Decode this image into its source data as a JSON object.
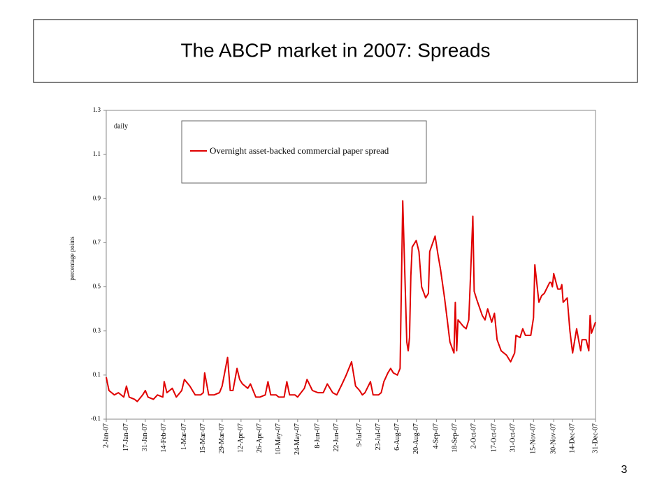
{
  "chart_data": {
    "type": "line",
    "title": "The ABCP market in 2007: Spreads",
    "y_label": "percentage points",
    "annotation": "daily",
    "page_number": "3",
    "x": [
      "2-Jan-07",
      "4-Jan-07",
      "8-Jan-07",
      "11-Jan-07",
      "15-Jan-07",
      "17-Jan-07",
      "19-Jan-07",
      "23-Jan-07",
      "25-Jan-07",
      "29-Jan-07",
      "31-Jan-07",
      "2-Feb-07",
      "6-Feb-07",
      "9-Feb-07",
      "13-Feb-07",
      "14-Feb-07",
      "16-Feb-07",
      "20-Feb-07",
      "23-Feb-07",
      "27-Feb-07",
      "1-Mar-07",
      "5-Mar-07",
      "7-Mar-07",
      "9-Mar-07",
      "13-Mar-07",
      "15-Mar-07",
      "16-Mar-07",
      "19-Mar-07",
      "23-Mar-07",
      "27-Mar-07",
      "29-Mar-07",
      "2-Apr-07",
      "4-Apr-07",
      "6-Apr-07",
      "9-Apr-07",
      "11-Apr-07",
      "13-Apr-07",
      "17-Apr-07",
      "19-Apr-07",
      "23-Apr-07",
      "26-Apr-07",
      "30-Apr-07",
      "2-May-07",
      "4-May-07",
      "8-May-07",
      "10-May-07",
      "14-May-07",
      "16-May-07",
      "18-May-07",
      "22-May-07",
      "24-May-07",
      "29-May-07",
      "31-May-07",
      "4-Jun-07",
      "8-Jun-07",
      "12-Jun-07",
      "15-Jun-07",
      "19-Jun-07",
      "22-Jun-07",
      "26-Jun-07",
      "29-Jun-07",
      "3-Jul-07",
      "6-Jul-07",
      "9-Jul-07",
      "11-Jul-07",
      "13-Jul-07",
      "17-Jul-07",
      "19-Jul-07",
      "23-Jul-07",
      "25-Jul-07",
      "27-Jul-07",
      "30-Jul-07",
      "1-Aug-07",
      "3-Aug-07",
      "6-Aug-07",
      "8-Aug-07",
      "10-Aug-07",
      "13-Aug-07",
      "14-Aug-07",
      "15-Aug-07",
      "16-Aug-07",
      "17-Aug-07",
      "20-Aug-07",
      "22-Aug-07",
      "24-Aug-07",
      "27-Aug-07",
      "29-Aug-07",
      "30-Aug-07",
      "3-Sep-07",
      "5-Sep-07",
      "7-Sep-07",
      "10-Sep-07",
      "12-Sep-07",
      "14-Sep-07",
      "17-Sep-07",
      "18-Sep-07",
      "19-Sep-07",
      "20-Sep-07",
      "24-Sep-07",
      "26-Sep-07",
      "28-Sep-07",
      "1-Oct-07",
      "2-Oct-07",
      "4-Oct-07",
      "8-Oct-07",
      "10-Oct-07",
      "12-Oct-07",
      "15-Oct-07",
      "17-Oct-07",
      "19-Oct-07",
      "22-Oct-07",
      "24-Oct-07",
      "26-Oct-07",
      "29-Oct-07",
      "1-Nov-07",
      "2-Nov-07",
      "5-Nov-07",
      "7-Nov-07",
      "9-Nov-07",
      "13-Nov-07",
      "15-Nov-07",
      "16-Nov-07",
      "19-Nov-07",
      "21-Nov-07",
      "23-Nov-07",
      "27-Nov-07",
      "28-Nov-07",
      "29-Nov-07",
      "30-Nov-07",
      "3-Dec-07",
      "5-Dec-07",
      "6-Dec-07",
      "7-Dec-07",
      "10-Dec-07",
      "12-Dec-07",
      "14-Dec-07",
      "17-Dec-07",
      "19-Dec-07",
      "20-Dec-07",
      "21-Dec-07",
      "24-Dec-07",
      "26-Dec-07",
      "27-Dec-07",
      "28-Dec-07",
      "31-Dec-07"
    ],
    "series": [
      {
        "name": "Overnight asset-backed commercial paper spread",
        "color": "#e00000",
        "values": [
          0.09,
          0.03,
          0.01,
          0.02,
          0.0,
          0.05,
          0.0,
          -0.01,
          -0.02,
          0.01,
          0.03,
          0.0,
          -0.01,
          0.01,
          0.0,
          0.07,
          0.02,
          0.04,
          0.0,
          0.03,
          0.08,
          0.05,
          0.03,
          0.01,
          0.01,
          0.02,
          0.11,
          0.01,
          0.01,
          0.02,
          0.05,
          0.18,
          0.03,
          0.03,
          0.13,
          0.08,
          0.06,
          0.04,
          0.06,
          0.0,
          0.0,
          0.01,
          0.07,
          0.01,
          0.01,
          0.0,
          0.0,
          0.07,
          0.01,
          0.01,
          0.0,
          0.04,
          0.08,
          0.03,
          0.02,
          0.02,
          0.06,
          0.02,
          0.01,
          0.06,
          0.1,
          0.16,
          0.05,
          0.03,
          0.01,
          0.02,
          0.07,
          0.01,
          0.01,
          0.02,
          0.07,
          0.11,
          0.13,
          0.11,
          0.1,
          0.13,
          0.89,
          0.25,
          0.21,
          0.27,
          0.55,
          0.68,
          0.71,
          0.66,
          0.5,
          0.45,
          0.47,
          0.66,
          0.73,
          0.65,
          0.58,
          0.45,
          0.35,
          0.25,
          0.2,
          0.43,
          0.21,
          0.35,
          0.32,
          0.31,
          0.35,
          0.82,
          0.48,
          0.44,
          0.37,
          0.35,
          0.4,
          0.34,
          0.38,
          0.26,
          0.21,
          0.2,
          0.19,
          0.16,
          0.2,
          0.28,
          0.27,
          0.31,
          0.28,
          0.28,
          0.36,
          0.6,
          0.43,
          0.46,
          0.47,
          0.52,
          0.52,
          0.5,
          0.56,
          0.49,
          0.49,
          0.51,
          0.43,
          0.45,
          0.3,
          0.2,
          0.31,
          0.24,
          0.21,
          0.26,
          0.26,
          0.21,
          0.37,
          0.29,
          0.34
        ]
      }
    ],
    "xlim": [
      "2-Jan-07",
      "31-Dec-07"
    ],
    "xticks": [
      "2-Jan-07",
      "17-Jan-07",
      "31-Jan-07",
      "14-Feb-07",
      "1-Mar-07",
      "15-Mar-07",
      "29-Mar-07",
      "12-Apr-07",
      "26-Apr-07",
      "10-May-07",
      "24-May-07",
      "8-Jun-07",
      "22-Jun-07",
      "9-Jul-07",
      "23-Jul-07",
      "6-Aug-07",
      "20-Aug-07",
      "4-Sep-07",
      "18-Sep-07",
      "2-Oct-07",
      "17-Oct-07",
      "31-Oct-07",
      "15-Nov-07",
      "30-Nov-07",
      "14-Dec-07",
      "31-Dec-07"
    ],
    "ylim": [
      -0.1,
      1.3
    ],
    "yticks": [
      -0.1,
      0.1,
      0.3,
      0.5,
      0.7,
      0.9,
      1.1,
      1.3
    ],
    "grid": false
  }
}
